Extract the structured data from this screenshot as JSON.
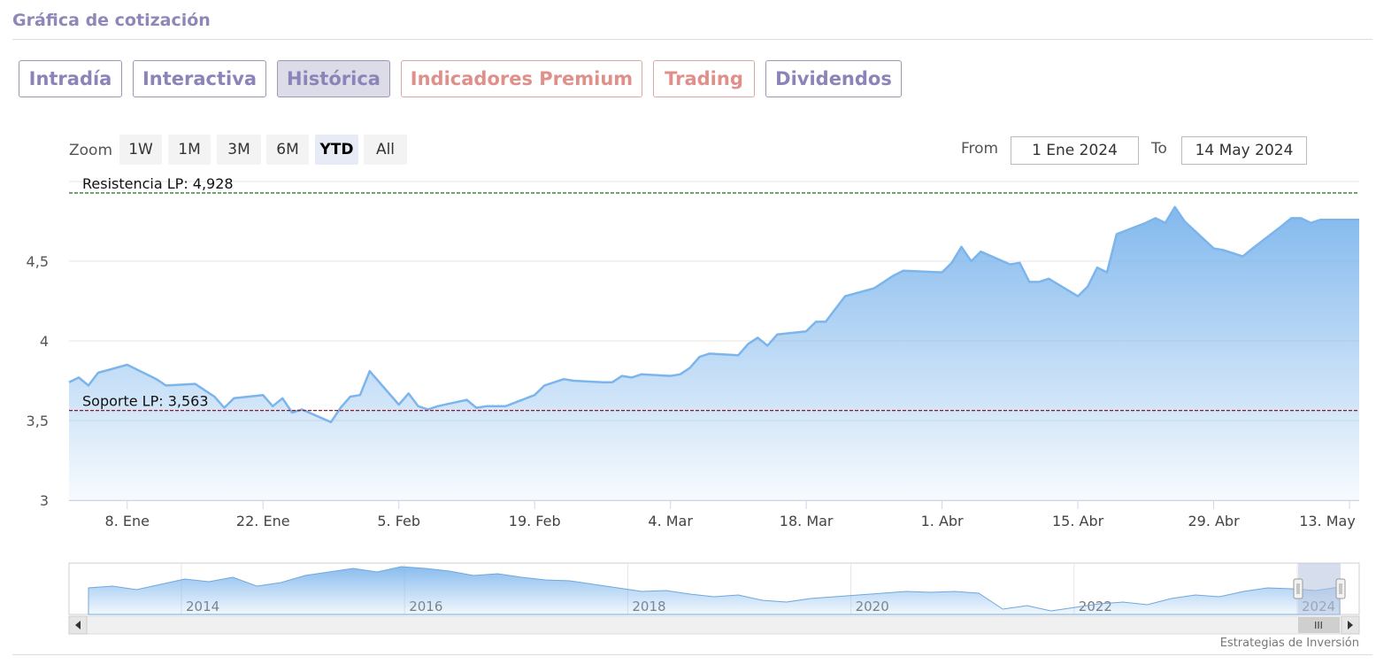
{
  "header": {
    "title": "Gráfica de cotización"
  },
  "tabs": [
    {
      "label": "Intradía",
      "active": false,
      "premium": false
    },
    {
      "label": "Interactiva",
      "active": false,
      "premium": false
    },
    {
      "label": "Histórica",
      "active": true,
      "premium": false
    },
    {
      "label": "Indicadores Premium",
      "active": false,
      "premium": true
    },
    {
      "label": "Trading",
      "active": false,
      "premium": true
    },
    {
      "label": "Dividendos",
      "active": false,
      "premium": false
    }
  ],
  "toolbar": {
    "zoom_label": "Zoom",
    "zoom_options": [
      "1W",
      "1M",
      "3M",
      "6M",
      "YTD",
      "All"
    ],
    "zoom_selected": "YTD",
    "from_label": "From",
    "from_value": "1 Ene 2024",
    "to_label": "To",
    "to_value": "14 May 2024"
  },
  "colors": {
    "accent": "#8b84b8",
    "premium": "#e0908a",
    "line": "#7cb5ec",
    "resistance": "#2e7d32",
    "support": "#8b1a2b"
  },
  "chart_data": {
    "type": "area",
    "ylim": [
      3,
      5
    ],
    "yticks": [
      3,
      3.5,
      4,
      4.5
    ],
    "ytick_labels": [
      "3",
      "3,5",
      "4",
      "4,5"
    ],
    "xlim": [
      "2024-01-02",
      "2024-05-14"
    ],
    "xticks": [
      {
        "date": "2024-01-08",
        "label": "8. Ene"
      },
      {
        "date": "2024-01-22",
        "label": "22. Ene"
      },
      {
        "date": "2024-02-05",
        "label": "5. Feb"
      },
      {
        "date": "2024-02-19",
        "label": "19. Feb"
      },
      {
        "date": "2024-03-04",
        "label": "4. Mar"
      },
      {
        "date": "2024-03-18",
        "label": "18. Mar"
      },
      {
        "date": "2024-04-01",
        "label": "1. Abr"
      },
      {
        "date": "2024-04-15",
        "label": "15. Abr"
      },
      {
        "date": "2024-04-29",
        "label": "29. Abr"
      },
      {
        "date": "2024-05-13",
        "label": "13. May"
      }
    ],
    "series": [
      {
        "points": [
          [
            "2024-01-02",
            3.74
          ],
          [
            "2024-01-03",
            3.77
          ],
          [
            "2024-01-04",
            3.72
          ],
          [
            "2024-01-05",
            3.8
          ],
          [
            "2024-01-08",
            3.85
          ],
          [
            "2024-01-09",
            3.82
          ],
          [
            "2024-01-10",
            3.79
          ],
          [
            "2024-01-11",
            3.76
          ],
          [
            "2024-01-12",
            3.72
          ],
          [
            "2024-01-15",
            3.73
          ],
          [
            "2024-01-16",
            3.69
          ],
          [
            "2024-01-17",
            3.65
          ],
          [
            "2024-01-18",
            3.58
          ],
          [
            "2024-01-19",
            3.64
          ],
          [
            "2024-01-22",
            3.66
          ],
          [
            "2024-01-23",
            3.59
          ],
          [
            "2024-01-24",
            3.64
          ],
          [
            "2024-01-25",
            3.55
          ],
          [
            "2024-01-26",
            3.57
          ],
          [
            "2024-01-29",
            3.49
          ],
          [
            "2024-01-30",
            3.58
          ],
          [
            "2024-01-31",
            3.65
          ],
          [
            "2024-02-01",
            3.66
          ],
          [
            "2024-02-02",
            3.81
          ],
          [
            "2024-02-05",
            3.6
          ],
          [
            "2024-02-06",
            3.67
          ],
          [
            "2024-02-07",
            3.59
          ],
          [
            "2024-02-08",
            3.57
          ],
          [
            "2024-02-09",
            3.59
          ],
          [
            "2024-02-12",
            3.63
          ],
          [
            "2024-02-13",
            3.58
          ],
          [
            "2024-02-14",
            3.59
          ],
          [
            "2024-02-15",
            3.59
          ],
          [
            "2024-02-16",
            3.59
          ],
          [
            "2024-02-19",
            3.66
          ],
          [
            "2024-02-20",
            3.72
          ],
          [
            "2024-02-21",
            3.74
          ],
          [
            "2024-02-22",
            3.76
          ],
          [
            "2024-02-23",
            3.75
          ],
          [
            "2024-02-26",
            3.74
          ],
          [
            "2024-02-27",
            3.74
          ],
          [
            "2024-02-28",
            3.78
          ],
          [
            "2024-02-29",
            3.77
          ],
          [
            "2024-03-01",
            3.79
          ],
          [
            "2024-03-04",
            3.78
          ],
          [
            "2024-03-05",
            3.79
          ],
          [
            "2024-03-06",
            3.83
          ],
          [
            "2024-03-07",
            3.9
          ],
          [
            "2024-03-08",
            3.92
          ],
          [
            "2024-03-11",
            3.91
          ],
          [
            "2024-03-12",
            3.98
          ],
          [
            "2024-03-13",
            4.02
          ],
          [
            "2024-03-14",
            3.97
          ],
          [
            "2024-03-15",
            4.04
          ],
          [
            "2024-03-18",
            4.06
          ],
          [
            "2024-03-19",
            4.12
          ],
          [
            "2024-03-20",
            4.12
          ],
          [
            "2024-03-21",
            4.2
          ],
          [
            "2024-03-22",
            4.28
          ],
          [
            "2024-03-25",
            4.33
          ],
          [
            "2024-03-26",
            4.37
          ],
          [
            "2024-03-27",
            4.41
          ],
          [
            "2024-03-28",
            4.44
          ],
          [
            "2024-04-01",
            4.43
          ],
          [
            "2024-04-02",
            4.49
          ],
          [
            "2024-04-03",
            4.59
          ],
          [
            "2024-04-04",
            4.5
          ],
          [
            "2024-04-05",
            4.56
          ],
          [
            "2024-04-08",
            4.48
          ],
          [
            "2024-04-09",
            4.49
          ],
          [
            "2024-04-10",
            4.37
          ],
          [
            "2024-04-11",
            4.37
          ],
          [
            "2024-04-12",
            4.39
          ],
          [
            "2024-04-15",
            4.28
          ],
          [
            "2024-04-16",
            4.34
          ],
          [
            "2024-04-17",
            4.46
          ],
          [
            "2024-04-18",
            4.43
          ],
          [
            "2024-04-19",
            4.67
          ],
          [
            "2024-04-22",
            4.74
          ],
          [
            "2024-04-23",
            4.77
          ],
          [
            "2024-04-24",
            4.74
          ],
          [
            "2024-04-25",
            4.84
          ],
          [
            "2024-04-26",
            4.75
          ],
          [
            "2024-04-29",
            4.58
          ],
          [
            "2024-04-30",
            4.57
          ],
          [
            "2024-05-02",
            4.53
          ],
          [
            "2024-05-03",
            4.58
          ],
          [
            "2024-05-06",
            4.72
          ],
          [
            "2024-05-07",
            4.77
          ],
          [
            "2024-05-08",
            4.77
          ],
          [
            "2024-05-09",
            4.74
          ],
          [
            "2024-05-10",
            4.76
          ],
          [
            "2024-05-13",
            4.76
          ],
          [
            "2024-05-14",
            4.76
          ]
        ]
      }
    ],
    "plot_lines": [
      {
        "label": "Resistencia LP: 4,928",
        "value": 4.928
      },
      {
        "label": "Soporte LP: 3,563",
        "value": 3.563
      }
    ],
    "navigator": {
      "year_labels": [
        "2014",
        "2016",
        "2018",
        "2020",
        "2022",
        "2024"
      ],
      "scrollbar_grip": "III"
    },
    "credits": "Estrategias de Inversión"
  }
}
